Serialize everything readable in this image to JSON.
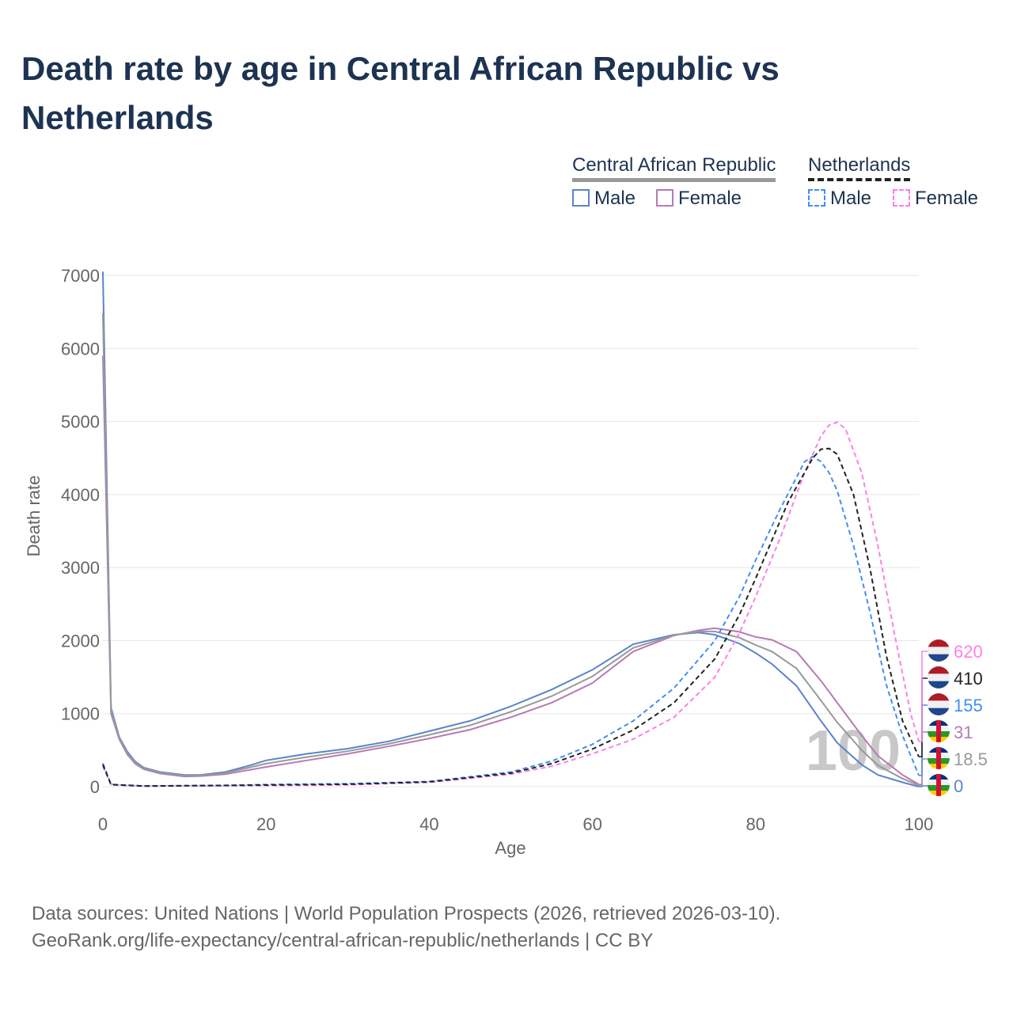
{
  "title": "Death rate by age in Central African Republic vs Netherlands",
  "legend": {
    "car": "Central African Republic",
    "nl": "Netherlands",
    "male": "Male",
    "female": "Female"
  },
  "footer": {
    "line1": "Data sources: United Nations | World Population Prospects (2026, retrieved 2026-03-10).",
    "line2": "GeoRank.org/life-expectancy/central-african-republic/netherlands | CC BY"
  },
  "watermark": "100",
  "chart_data": {
    "type": "line",
    "xlabel": "Age",
    "ylabel": "Death rate",
    "xlim": [
      0,
      100
    ],
    "ylim": [
      0,
      7000
    ],
    "xticks": [
      0,
      20,
      40,
      60,
      80,
      100
    ],
    "yticks": [
      0,
      1000,
      2000,
      3000,
      4000,
      5000,
      6000,
      7000
    ],
    "series": [
      {
        "name": "Central African Republic Male",
        "color": "#5b84cc",
        "dash": false,
        "end_label": "0",
        "flag": "car",
        "x": [
          0,
          1,
          2,
          3,
          4,
          5,
          7,
          10,
          12,
          15,
          18,
          20,
          25,
          30,
          35,
          40,
          45,
          50,
          55,
          60,
          65,
          70,
          73,
          75,
          78,
          80,
          82,
          85,
          88,
          90,
          93,
          95,
          98,
          100
        ],
        "y": [
          7050,
          1080,
          680,
          480,
          340,
          260,
          200,
          160,
          160,
          200,
          290,
          360,
          450,
          520,
          620,
          760,
          900,
          1100,
          1330,
          1600,
          1950,
          2080,
          2110,
          2080,
          1960,
          1830,
          1680,
          1380,
          900,
          600,
          300,
          160,
          60,
          0
        ]
      },
      {
        "name": "Central African Republic Female",
        "color": "#b77ab5",
        "dash": false,
        "end_label": "31",
        "flag": "car",
        "x": [
          0,
          1,
          2,
          3,
          4,
          5,
          7,
          10,
          12,
          15,
          20,
          25,
          30,
          35,
          40,
          45,
          50,
          55,
          60,
          65,
          70,
          73,
          75,
          78,
          80,
          82,
          85,
          88,
          90,
          93,
          95,
          98,
          100
        ],
        "y": [
          5900,
          1000,
          650,
          440,
          310,
          240,
          180,
          140,
          145,
          170,
          270,
          360,
          450,
          550,
          660,
          780,
          950,
          1150,
          1420,
          1850,
          2070,
          2140,
          2170,
          2120,
          2050,
          2010,
          1850,
          1450,
          1150,
          700,
          420,
          160,
          31
        ]
      },
      {
        "name": "Central African Republic",
        "color": "#999999",
        "dash": false,
        "end_label": "18.5",
        "flag": "car",
        "x": [
          0,
          1,
          2,
          3,
          4,
          5,
          7,
          10,
          12,
          15,
          20,
          25,
          30,
          35,
          40,
          45,
          50,
          55,
          60,
          65,
          70,
          73,
          75,
          78,
          80,
          82,
          85,
          88,
          90,
          93,
          95,
          98,
          100
        ],
        "y": [
          6480,
          1040,
          665,
          460,
          325,
          250,
          190,
          150,
          152,
          185,
          315,
          405,
          485,
          585,
          710,
          840,
          1025,
          1240,
          1510,
          1900,
          2075,
          2125,
          2125,
          2040,
          1940,
          1850,
          1620,
          1180,
          880,
          500,
          290,
          110,
          18.5
        ]
      },
      {
        "name": "Netherlands Male",
        "color": "#3f8ef5",
        "dash": true,
        "end_label": "155",
        "flag": "nl",
        "x": [
          0,
          1,
          5,
          15,
          20,
          30,
          40,
          50,
          55,
          60,
          65,
          70,
          75,
          78,
          80,
          83,
          86,
          87,
          88,
          89,
          90,
          92,
          94,
          96,
          98,
          100
        ],
        "y": [
          320,
          30,
          10,
          15,
          30,
          40,
          70,
          200,
          350,
          580,
          900,
          1350,
          2000,
          2600,
          3100,
          3800,
          4450,
          4520,
          4450,
          4300,
          4050,
          3300,
          2400,
          1400,
          700,
          155
        ]
      },
      {
        "name": "Netherlands Female",
        "color": "#ff7ee8",
        "dash": true,
        "end_label": "620",
        "flag": "nl",
        "x": [
          0,
          1,
          5,
          20,
          30,
          40,
          50,
          55,
          60,
          65,
          70,
          75,
          78,
          80,
          83,
          86,
          88,
          89,
          90,
          91,
          93,
          95,
          97,
          99,
          100
        ],
        "y": [
          280,
          25,
          8,
          15,
          25,
          60,
          170,
          280,
          450,
          650,
          950,
          1500,
          2100,
          2600,
          3400,
          4300,
          4800,
          4950,
          4990,
          4900,
          4300,
          3300,
          2100,
          1000,
          620
        ]
      },
      {
        "name": "Netherlands",
        "color": "#222222",
        "dash": true,
        "end_label": "410",
        "flag": "nl",
        "x": [
          0,
          1,
          5,
          20,
          30,
          40,
          50,
          55,
          60,
          65,
          70,
          75,
          78,
          80,
          84,
          87,
          88,
          89,
          90,
          92,
          94,
          96,
          98,
          100
        ],
        "y": [
          300,
          28,
          9,
          22,
          32,
          65,
          185,
          315,
          515,
          775,
          1150,
          1750,
          2350,
          2850,
          3900,
          4500,
          4620,
          4630,
          4550,
          4000,
          3000,
          1800,
          900,
          410
        ]
      }
    ]
  }
}
